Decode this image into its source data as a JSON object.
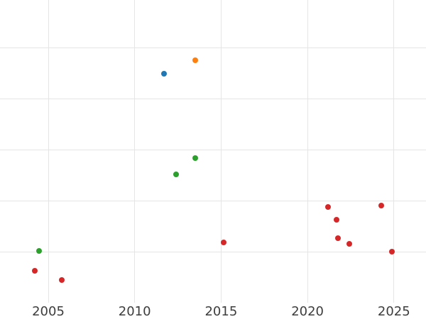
{
  "chart_data": {
    "type": "scatter",
    "title": "",
    "xlabel": "",
    "ylabel": "",
    "grid": true,
    "legend": false,
    "x_ticks": [
      2005,
      2010,
      2015,
      2020,
      2025
    ],
    "x_tick_labels": [
      "2005",
      "2010",
      "2015",
      "2020",
      "2025"
    ],
    "y_axis_labels_visible": false,
    "y_gridline_values": [
      1,
      2,
      3,
      4,
      5
    ],
    "y_unit_note": "y values given in unlabeled gridline units (1 unit = one gridline spacing, 0 = bottom of plot area)",
    "xlim": [
      2002.2,
      2026.9
    ],
    "ylim": [
      -0.32,
      5.93
    ],
    "series": [
      {
        "name": "blue",
        "color": "#1f77b4",
        "points": [
          {
            "x": 2011.7,
            "y": 4.49
          }
        ]
      },
      {
        "name": "orange",
        "color": "#ff7f0e",
        "points": [
          {
            "x": 2013.5,
            "y": 4.75
          }
        ]
      },
      {
        "name": "green",
        "color": "#2ca02c",
        "points": [
          {
            "x": 2004.45,
            "y": 1.01
          },
          {
            "x": 2012.4,
            "y": 2.52
          },
          {
            "x": 2013.5,
            "y": 2.83
          }
        ]
      },
      {
        "name": "red",
        "color": "#d62728",
        "points": [
          {
            "x": 2004.2,
            "y": 0.63
          },
          {
            "x": 2005.8,
            "y": 0.44
          },
          {
            "x": 2015.15,
            "y": 1.18
          },
          {
            "x": 2021.2,
            "y": 1.88
          },
          {
            "x": 2021.7,
            "y": 1.63
          },
          {
            "x": 2021.77,
            "y": 1.27
          },
          {
            "x": 2022.4,
            "y": 1.15
          },
          {
            "x": 2024.28,
            "y": 1.9
          },
          {
            "x": 2024.9,
            "y": 1.0
          }
        ]
      }
    ]
  },
  "colors": {
    "background": "#ffffff",
    "gridline": "#e5e5e5",
    "tick_label": "#3d3d3d"
  }
}
